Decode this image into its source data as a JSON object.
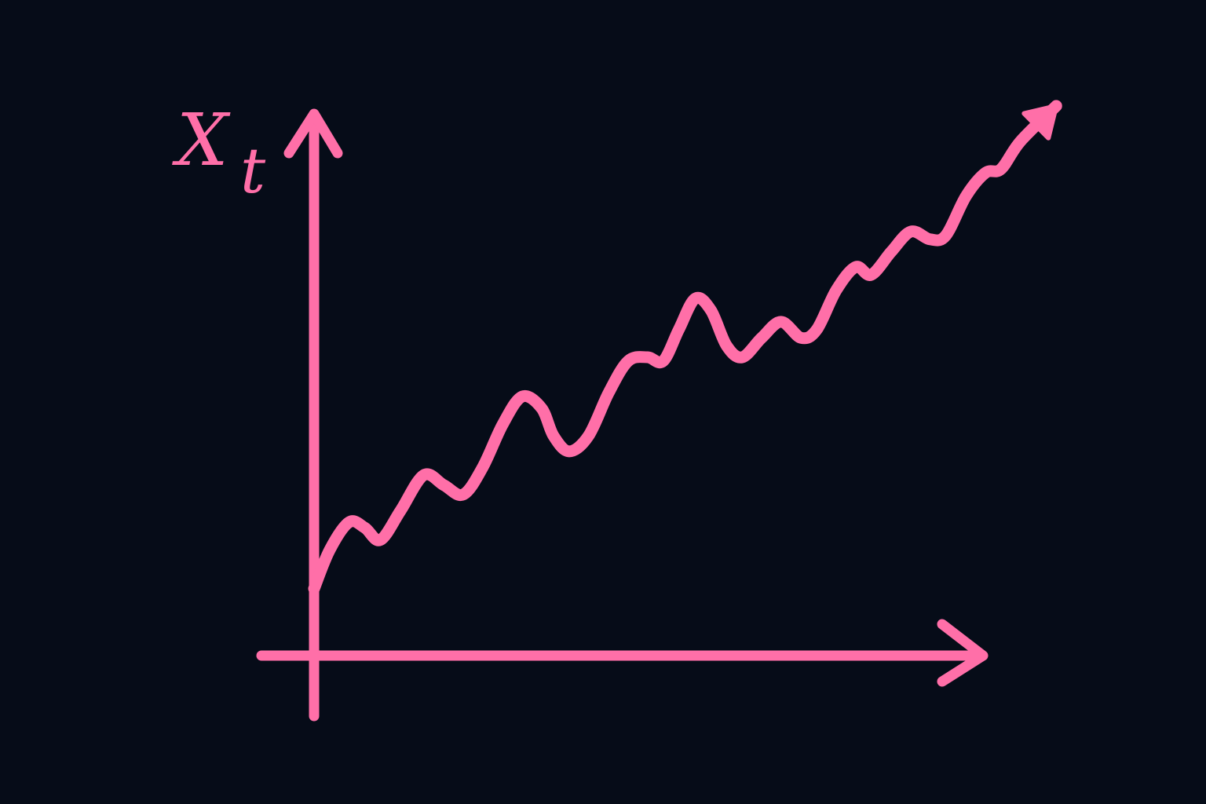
{
  "chart_data": {
    "type": "line",
    "ylabel": {
      "main": "X",
      "sub": "t"
    },
    "color": "#ff6fa8",
    "xlim": [
      0,
      100
    ],
    "ylim": [
      0,
      100
    ],
    "x": [
      0,
      2.1,
      4.7,
      6.8,
      8.9,
      11.6,
      14.7,
      17.4,
      20,
      22.6,
      25.3,
      27.9,
      30.5,
      32.1,
      34.2,
      36.8,
      39.5,
      42.1,
      44.7,
      46.8,
      48.9,
      51.1,
      53.2,
      55.3,
      57.4,
      60,
      62.6,
      65.3,
      67.4,
      70,
      72.6,
      74.7,
      77.4,
      80,
      82.6,
      84.7,
      87.4,
      90,
      92.1,
      94.7,
      99.5
    ],
    "values": [
      12.1,
      19.1,
      24.1,
      23.1,
      20.9,
      26.2,
      32.6,
      30.8,
      29.1,
      34,
      41.8,
      46.8,
      44.7,
      39.7,
      36.9,
      39.7,
      47.5,
      53.2,
      53.9,
      53.2,
      58.9,
      64.5,
      62.4,
      56,
      53.9,
      57.4,
      60.3,
      57.4,
      58.9,
      66,
      70.2,
      68.8,
      73,
      76.6,
      75.2,
      75.9,
      83,
      87.2,
      87.9,
      92.9,
      99.3
    ]
  }
}
